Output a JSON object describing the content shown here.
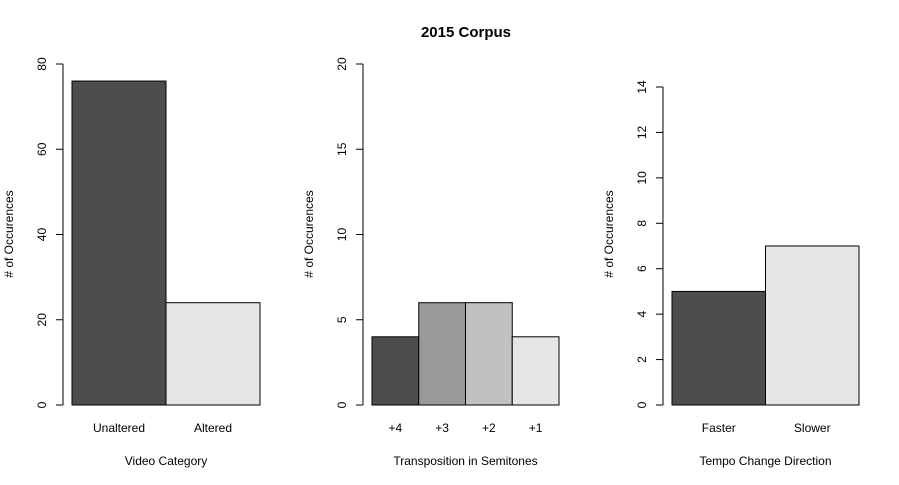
{
  "page_title": "2015 Corpus",
  "chart_data": [
    {
      "type": "bar",
      "title": "",
      "xlabel": "Video Category",
      "ylabel": "# of Occurences",
      "categories": [
        "Unaltered",
        "Altered"
      ],
      "values": [
        76,
        24
      ],
      "colors": [
        "#4d4d4d",
        "#e6e6e6"
      ],
      "ylim": [
        0,
        80
      ],
      "yticks": [
        0,
        20,
        40,
        60,
        80
      ],
      "grid": false,
      "legend": "none"
    },
    {
      "type": "bar",
      "title": "",
      "xlabel": "Transposition in Semitones",
      "ylabel": "# of Occurences",
      "categories": [
        "+4",
        "+3",
        "+2",
        "+1"
      ],
      "values": [
        4,
        6,
        6,
        4
      ],
      "colors": [
        "#4d4d4d",
        "#999999",
        "#c1c1c1",
        "#e6e6e6"
      ],
      "ylim": [
        0,
        20
      ],
      "yticks": [
        0,
        5,
        10,
        15,
        20
      ],
      "grid": false,
      "legend": "none"
    },
    {
      "type": "bar",
      "title": "",
      "xlabel": "Tempo Change Direction",
      "ylabel": "# of Occurences",
      "categories": [
        "Faster",
        "Slower"
      ],
      "values": [
        5,
        7
      ],
      "colors": [
        "#4d4d4d",
        "#e6e6e6"
      ],
      "ylim": [
        0,
        14
      ],
      "yticks": [
        0,
        2,
        4,
        6,
        8,
        10,
        12,
        14
      ],
      "grid": false,
      "legend": "none"
    }
  ]
}
